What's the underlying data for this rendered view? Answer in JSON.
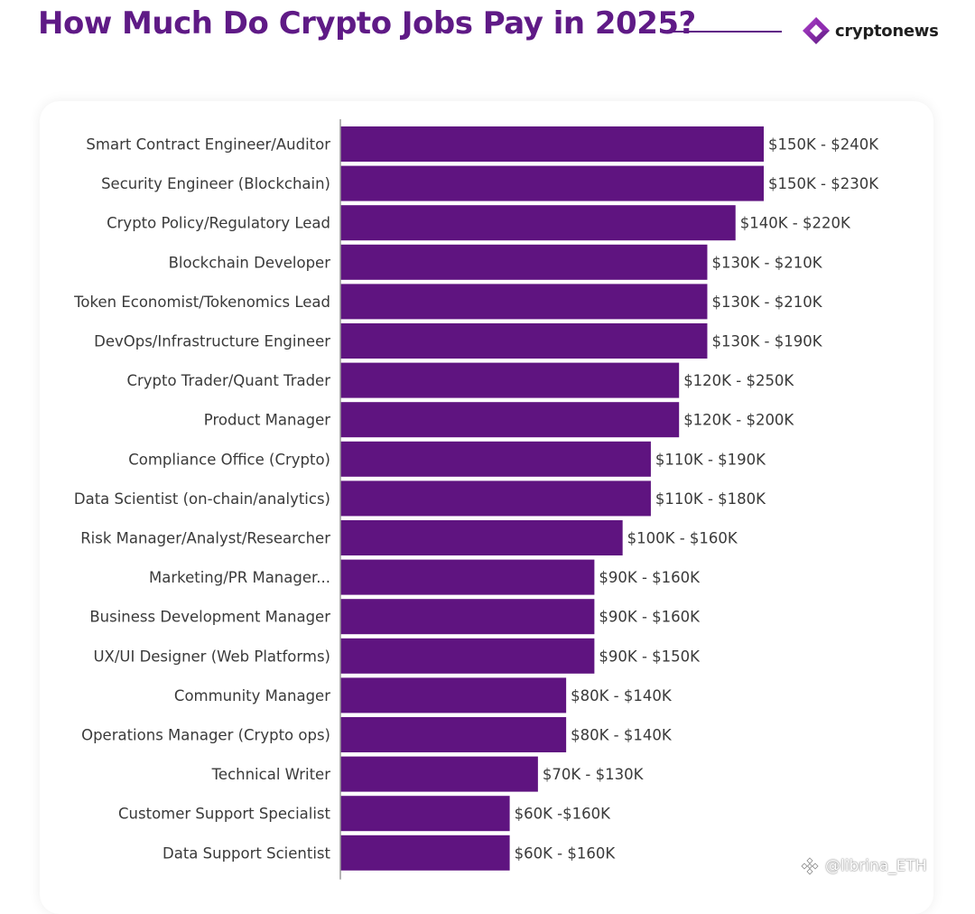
{
  "header": {
    "title": "How Much Do Crypto Jobs Pay in 2025?",
    "brand": "cryptonews",
    "brand_logo_icon": "cryptonews-logo-icon"
  },
  "watermark": {
    "text": "@librina_ETH",
    "icon": "binance-logo-icon"
  },
  "colors": {
    "title": "#5f1a86",
    "bar": "#5f1480",
    "axis": "#9a9a9a",
    "label": "#3a3a3a"
  },
  "chart_data": {
    "type": "bar",
    "orientation": "horizontal",
    "title": "",
    "xlabel": "",
    "ylabel": "",
    "xlim": [
      0,
      150
    ],
    "grid": false,
    "legend": "none",
    "categories": [
      "Smart Contract Engineer/Auditor",
      "Security Engineer (Blockchain)",
      "Crypto Policy/Regulatory Lead",
      "Blockchain Developer",
      "Token Economist/Tokenomics Lead",
      "DevOps/Infrastructure Engineer",
      "Crypto Trader/Quant Trader",
      "Product Manager",
      "Compliance Office (Crypto)",
      "Data Scientist (on-chain/analytics)",
      "Risk Manager/Analyst/Researcher",
      "Marketing/PR Manager...",
      "Business Development Manager",
      "UX/UI Designer (Web Platforms)",
      "Community Manager",
      "Operations Manager (Crypto ops)",
      "Technical Writer",
      "Customer Support Specialist",
      "Data Support Scientist"
    ],
    "values": [
      150,
      150,
      140,
      130,
      130,
      130,
      120,
      120,
      110,
      110,
      100,
      90,
      90,
      90,
      80,
      80,
      70,
      60,
      60
    ],
    "data_labels": [
      "$150K - $240K",
      "$150K - $230K",
      "$140K - $220K",
      "$130K - $210K",
      "$130K - $210K",
      "$130K - $190K",
      "$120K - $250K",
      "$120K - $200K",
      "$110K - $190K",
      "$110K - $180K",
      "$100K - $160K",
      "$90K - $160K",
      "$90K - $160K",
      "$90K - $150K",
      "$80K - $140K",
      "$80K - $140K",
      "$70K - $130K",
      "$60K -$160K",
      "$60K - $160K"
    ]
  }
}
